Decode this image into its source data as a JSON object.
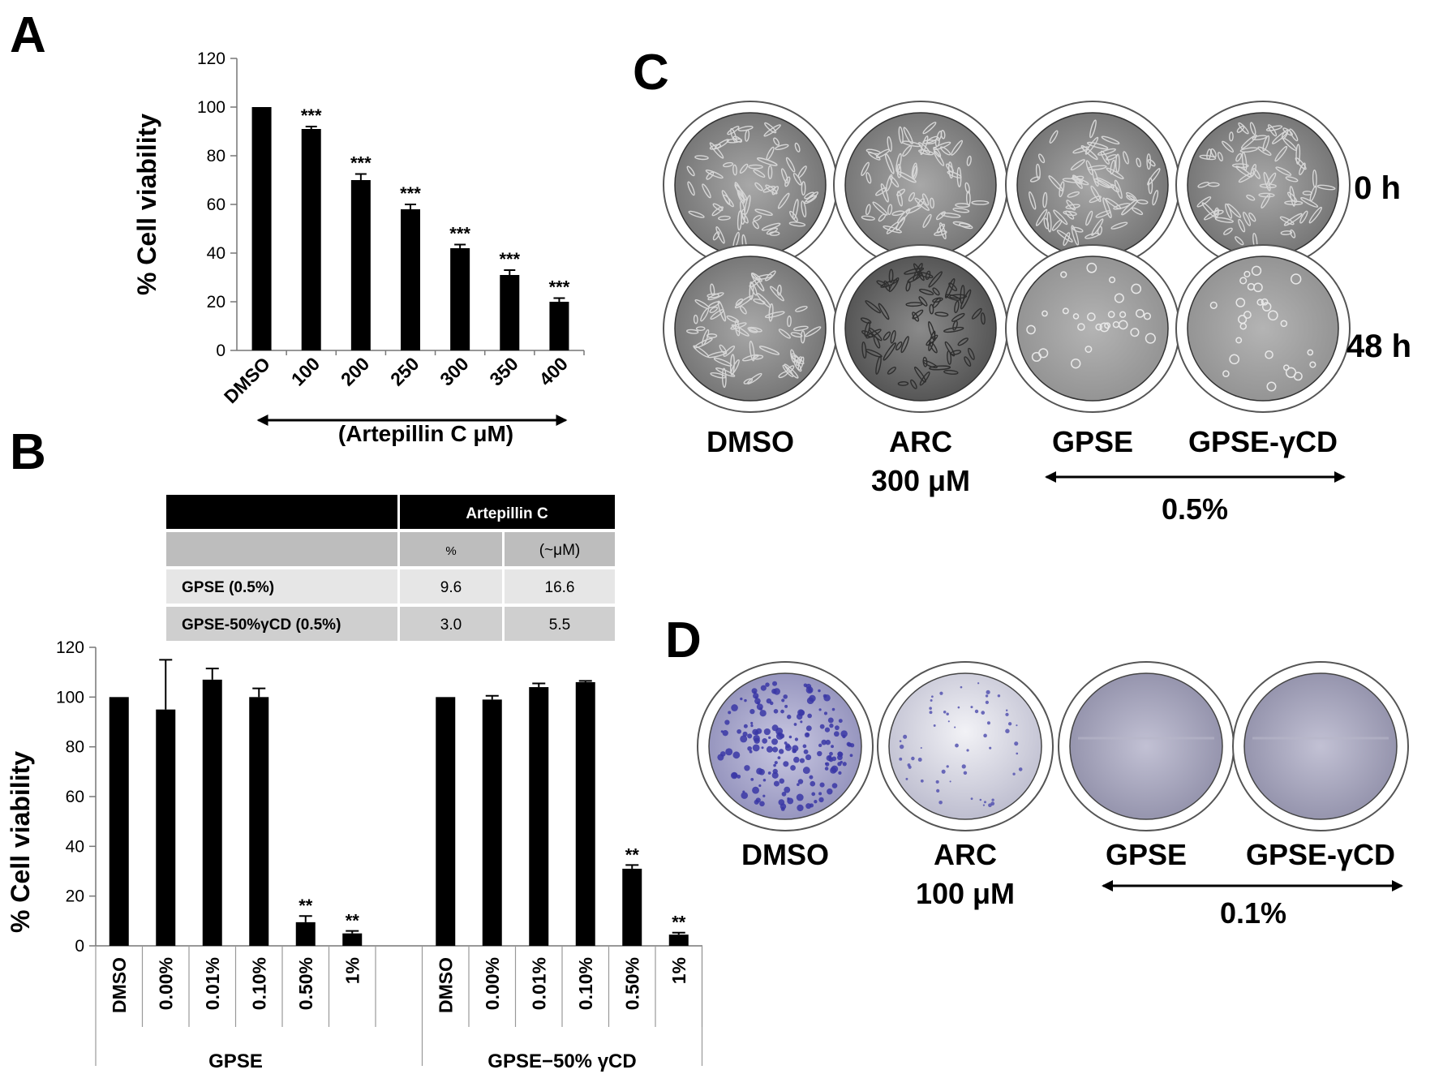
{
  "panels": {
    "A": {
      "letter": "A"
    },
    "B": {
      "letter": "B"
    },
    "C": {
      "letter": "C"
    },
    "D": {
      "letter": "D"
    }
  },
  "chart_data": [
    {
      "id": "A",
      "type": "bar",
      "ylabel": "% Cell viability",
      "ylim": [
        0,
        120
      ],
      "yticks": [
        0,
        20,
        40,
        60,
        80,
        100,
        120
      ],
      "categories": [
        "DMSO",
        "100",
        "200",
        "250",
        "300",
        "350",
        "400"
      ],
      "values": [
        100,
        91,
        70,
        58,
        42,
        31,
        20
      ],
      "errors": [
        0,
        1,
        2.5,
        2,
        1.5,
        2,
        1.5
      ],
      "significance": [
        "",
        "***",
        "***",
        "***",
        "***",
        "***",
        "***"
      ],
      "group_label": "(Artepillin C μM)",
      "grid": false
    },
    {
      "id": "B",
      "type": "bar",
      "ylabel": "% Cell viability",
      "ylim": [
        0,
        120
      ],
      "yticks": [
        0,
        20,
        40,
        60,
        80,
        100,
        120
      ],
      "groups": [
        {
          "name": "GPSE",
          "categories": [
            "DMSO",
            "0.00%",
            "0.01%",
            "0.10%",
            "0.50%",
            "1%"
          ],
          "values": [
            100,
            95,
            107,
            100,
            9.5,
            5
          ],
          "errors": [
            0,
            20,
            4.5,
            3.5,
            2.5,
            1
          ],
          "significance": [
            "",
            "",
            "",
            "",
            "**",
            "**"
          ]
        },
        {
          "name": "GPSE−50% γCD",
          "categories": [
            "DMSO",
            "0.00%",
            "0.01%",
            "0.10%",
            "0.50%",
            "1%"
          ],
          "values": [
            100,
            99,
            104,
            106,
            31,
            4.5
          ],
          "errors": [
            0,
            1.5,
            1.5,
            0.5,
            1.5,
            0.8
          ],
          "significance": [
            "",
            "",
            "",
            "",
            "**",
            "**"
          ]
        }
      ],
      "grid": false
    }
  ],
  "table": {
    "header": "Artepillin C",
    "subheaders": [
      "%",
      "(~μM)"
    ],
    "rows": [
      {
        "label": "GPSE (0.5%)",
        "pct": "9.6",
        "um": "16.6"
      },
      {
        "label": "GPSE-50%γCD (0.5%)",
        "pct": "3.0",
        "um": "5.5"
      }
    ]
  },
  "panelC": {
    "rows": [
      "0 h",
      "48 h"
    ],
    "labels": [
      "DMSO",
      "ARC",
      "GPSE",
      "GPSE-γCD"
    ],
    "sublabel": "300 μM",
    "range_label": "0.5%"
  },
  "panelD": {
    "labels": [
      "DMSO",
      "ARC",
      "GPSE",
      "GPSE-γCD"
    ],
    "sublabel": "100 μM",
    "range_label": "0.1%"
  }
}
